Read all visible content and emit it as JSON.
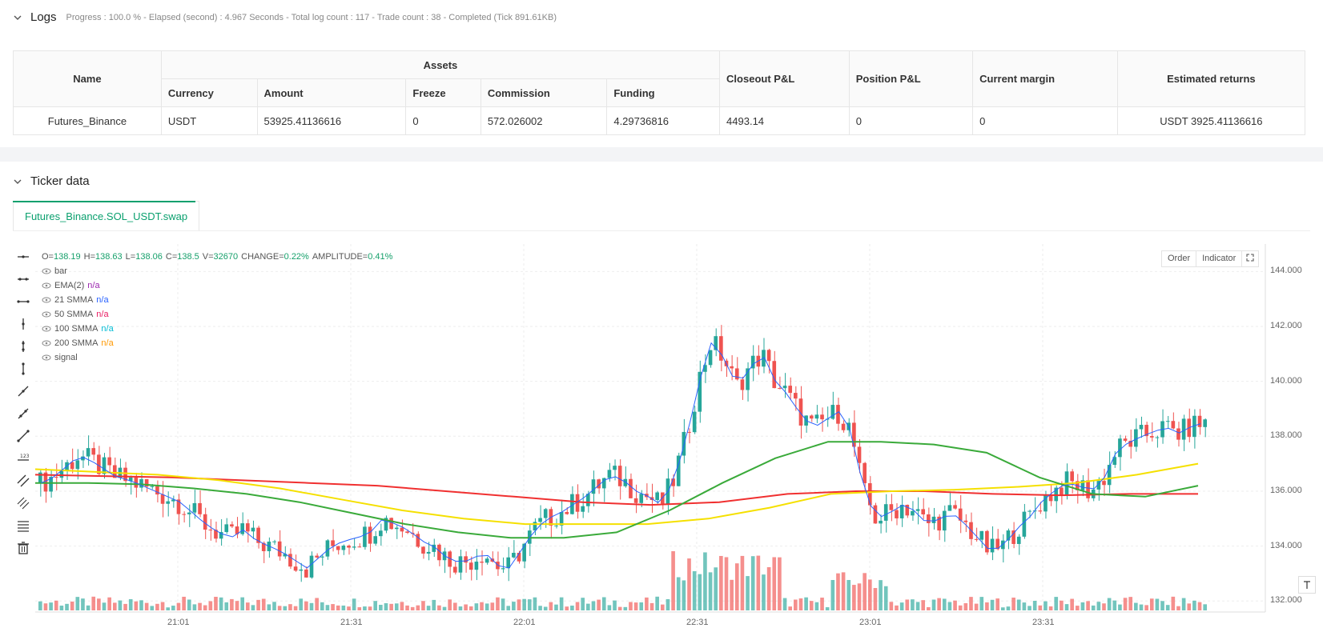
{
  "logs": {
    "title": "Logs",
    "progress": "Progress : 100.0 % - Elapsed (second) : 4.967  Seconds - Total log count : 117 - Trade count : 38 - Completed (Tick 891.61KB)"
  },
  "assets_table": {
    "headers": {
      "name": "Name",
      "assets": "Assets",
      "currency": "Currency",
      "amount": "Amount",
      "freeze": "Freeze",
      "commission": "Commission",
      "funding": "Funding",
      "closeout_pnl": "Closeout P&L",
      "position_pnl": "Position P&L",
      "current_margin": "Current margin",
      "estimated_returns": "Estimated returns"
    },
    "row": {
      "name": "Futures_Binance",
      "currency": "USDT",
      "amount": "53925.41136616",
      "freeze": "0",
      "commission": "572.026002",
      "funding": "4.29736816",
      "closeout_pnl": "4493.14",
      "position_pnl": "0",
      "current_margin": "0",
      "estimated_returns": "USDT 3925.41136616"
    }
  },
  "ticker": {
    "title": "Ticker data",
    "tab": "Futures_Binance.SOL_USDT.swap"
  },
  "legend": {
    "ohlc_prefix": "O=",
    "open": "138.19",
    "high_prefix": "H=",
    "high": "138.63",
    "low_prefix": "L=",
    "low": "138.06",
    "close_prefix": "C=",
    "close": "138.5",
    "vol_prefix": "V=",
    "volume": "32670",
    "change_prefix": "CHANGE=",
    "change": "0.22%",
    "amp_prefix": "AMPLITUDE=",
    "amplitude": "0.41%",
    "items": [
      {
        "label": "bar",
        "value": "",
        "color": "#555555"
      },
      {
        "label": "EMA(2)",
        "value": "n/a",
        "color": "#9c27b0"
      },
      {
        "label": "21 SMMA",
        "value": "n/a",
        "color": "#2962ff"
      },
      {
        "label": "50 SMMA",
        "value": "n/a",
        "color": "#e91e63"
      },
      {
        "label": "100 SMMA",
        "value": "n/a",
        "color": "#00bcd4"
      },
      {
        "label": "200 SMMA",
        "value": "n/a",
        "color": "#ff9800"
      },
      {
        "label": "signal",
        "value": "",
        "color": "#555555"
      }
    ]
  },
  "chart_buttons": {
    "order": "Order",
    "indicator": "Indicator"
  },
  "chart_data": {
    "type": "candlestick",
    "y_ticks": [
      "144.000",
      "142.000",
      "140.000",
      "138.000",
      "136.000",
      "134.000",
      "132.000"
    ],
    "y_range": [
      131.6,
      145.0
    ],
    "x_ticks": [
      "21:01",
      "21:31",
      "22:01",
      "22:31",
      "23:01",
      "23:31"
    ],
    "colors": {
      "up": "#26a69a",
      "down": "#ef5350",
      "ma_green": "#3aaa3a",
      "ma_yellow": "#f5e000",
      "ma_red": "#f03030"
    },
    "candle_close_path": [
      136.3,
      136.5,
      136.9,
      137.3,
      137.1,
      136.8,
      136.5,
      136.4,
      136.2,
      136.0,
      135.8,
      135.6,
      135.2,
      134.8,
      134.5,
      134.3,
      134.6,
      134.2,
      134.0,
      133.8,
      133.5,
      133.2,
      133.6,
      134.0,
      134.2,
      134.3,
      134.5,
      135.0,
      134.8,
      134.6,
      134.2,
      134.0,
      133.6,
      133.4,
      133.5,
      133.8,
      133.3,
      133.2,
      133.9,
      134.6,
      135.0,
      135.2,
      135.5,
      135.8,
      136.2,
      136.6,
      136.4,
      136.0,
      135.8,
      135.5,
      136.4,
      138.0,
      140.0,
      141.5,
      140.8,
      139.8,
      140.5,
      141.0,
      140.0,
      139.5,
      138.8,
      138.3,
      138.6,
      138.9,
      138.2,
      136.0,
      135.0,
      135.2,
      135.5,
      135.3,
      134.8,
      135.0,
      135.2,
      134.8,
      134.3,
      133.8,
      134.0,
      134.6,
      135.0,
      135.6,
      136.0,
      136.3,
      136.2,
      136.0,
      136.5,
      137.5,
      137.8,
      138.0,
      138.2,
      138.3,
      138.1,
      138.4,
      138.5
    ],
    "volume_approx": "relative, 0-1 scale per bar",
    "ma_green": [
      136.3,
      136.3,
      136.25,
      136.1,
      135.9,
      135.6,
      135.2,
      134.8,
      134.5,
      134.3,
      134.3,
      134.5,
      135.3,
      136.3,
      137.2,
      137.8,
      137.8,
      137.7,
      137.4,
      136.5,
      135.9,
      135.8,
      136.2
    ],
    "ma_yellow": [
      136.8,
      136.7,
      136.6,
      136.4,
      136.1,
      135.7,
      135.3,
      135.0,
      134.8,
      134.8,
      134.8,
      135.0,
      135.4,
      135.9,
      136.0,
      136.05,
      136.15,
      136.3,
      136.6,
      137.0
    ],
    "ma_red": [
      136.6,
      136.55,
      136.5,
      136.4,
      136.3,
      136.2,
      136.0,
      135.8,
      135.6,
      135.5,
      135.6,
      135.9,
      136.0,
      136.0,
      135.9,
      135.85,
      135.9,
      135.9
    ]
  }
}
